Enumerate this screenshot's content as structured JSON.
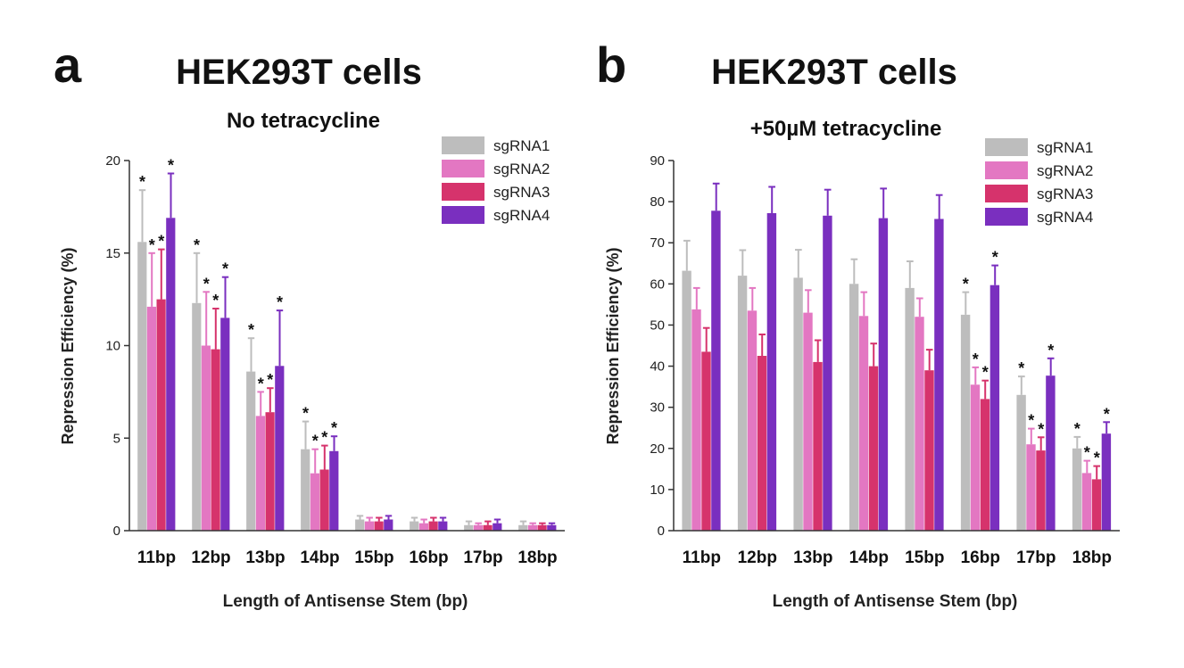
{
  "figure": {
    "panels": [
      {
        "label": "a",
        "title": "HEK293T cells",
        "subtitle": "No tetracycline"
      },
      {
        "label": "b",
        "title": "HEK293T cells",
        "subtitle": "+50µM tetracycline"
      }
    ],
    "colors": {
      "sgRNA1": "#bdbdbd",
      "sgRNA2": "#e377c2",
      "sgRNA3": "#d6336c",
      "sgRNA4": "#7a2fbf"
    }
  },
  "chart_data": [
    {
      "type": "bar",
      "title": "HEK293T cells",
      "subtitle": "No tetracycline",
      "xlabel": "Length of Antisense Stem (bp)",
      "ylabel": "Repression Efficiency (%)",
      "ylim": [
        0,
        20
      ],
      "yticks": [
        0,
        5,
        10,
        15,
        20
      ],
      "grid": false,
      "legend": "top-right",
      "categories": [
        "11bp",
        "12bp",
        "13bp",
        "14bp",
        "15bp",
        "16bp",
        "17bp",
        "18bp"
      ],
      "series": [
        {
          "name": "sgRNA1",
          "values": [
            15.6,
            12.3,
            8.6,
            4.4,
            0.6,
            0.5,
            0.3,
            0.3
          ],
          "errors": [
            2.8,
            2.7,
            1.8,
            1.5,
            0.2,
            0.2,
            0.2,
            0.2
          ],
          "significant": [
            true,
            true,
            true,
            true,
            false,
            false,
            false,
            false
          ]
        },
        {
          "name": "sgRNA2",
          "values": [
            12.1,
            10.0,
            6.2,
            3.1,
            0.5,
            0.4,
            0.3,
            0.3
          ],
          "errors": [
            2.9,
            2.9,
            1.3,
            1.3,
            0.2,
            0.2,
            0.1,
            0.1
          ],
          "significant": [
            true,
            true,
            true,
            true,
            false,
            false,
            false,
            false
          ]
        },
        {
          "name": "sgRNA3",
          "values": [
            12.5,
            9.8,
            6.4,
            3.3,
            0.5,
            0.5,
            0.3,
            0.3
          ],
          "errors": [
            2.7,
            2.2,
            1.3,
            1.3,
            0.2,
            0.2,
            0.2,
            0.1
          ],
          "significant": [
            true,
            true,
            true,
            true,
            false,
            false,
            false,
            false
          ]
        },
        {
          "name": "sgRNA4",
          "values": [
            16.9,
            11.5,
            8.9,
            4.3,
            0.6,
            0.5,
            0.4,
            0.3
          ],
          "errors": [
            2.4,
            2.2,
            3.0,
            0.8,
            0.2,
            0.2,
            0.2,
            0.1
          ],
          "significant": [
            true,
            true,
            true,
            true,
            false,
            false,
            false,
            false
          ]
        }
      ]
    },
    {
      "type": "bar",
      "title": "HEK293T cells",
      "subtitle": "+50µM tetracycline",
      "xlabel": "Length of Antisense Stem (bp)",
      "ylabel": "Repression Efficiency (%)",
      "ylim": [
        0,
        90
      ],
      "yticks": [
        0,
        10,
        20,
        30,
        40,
        50,
        60,
        70,
        80,
        90
      ],
      "grid": false,
      "legend": "top-right",
      "categories": [
        "11bp",
        "12bp",
        "13bp",
        "14bp",
        "15bp",
        "16bp",
        "17bp",
        "18bp"
      ],
      "series": [
        {
          "name": "sgRNA1",
          "values": [
            63.2,
            62.0,
            61.5,
            60.0,
            59.0,
            52.5,
            33.0,
            20.0
          ],
          "errors": [
            7.3,
            6.2,
            6.8,
            6.0,
            6.5,
            5.5,
            4.5,
            2.8
          ],
          "significant": [
            false,
            false,
            false,
            false,
            false,
            true,
            true,
            true
          ]
        },
        {
          "name": "sgRNA2",
          "values": [
            53.8,
            53.5,
            53.0,
            52.2,
            52.0,
            35.5,
            21.0,
            14.0
          ],
          "errors": [
            5.2,
            5.5,
            5.5,
            5.8,
            4.5,
            4.2,
            3.8,
            3.0
          ],
          "significant": [
            false,
            false,
            false,
            false,
            false,
            true,
            true,
            true
          ]
        },
        {
          "name": "sgRNA3",
          "values": [
            43.5,
            42.5,
            41.0,
            40.0,
            39.0,
            32.0,
            19.5,
            12.5
          ],
          "errors": [
            5.8,
            5.2,
            5.3,
            5.5,
            5.0,
            4.5,
            3.2,
            3.2
          ],
          "significant": [
            false,
            false,
            false,
            false,
            false,
            true,
            true,
            true
          ]
        },
        {
          "name": "sgRNA4",
          "values": [
            77.8,
            77.2,
            76.6,
            76.0,
            75.8,
            59.7,
            37.7,
            23.6
          ],
          "errors": [
            6.6,
            6.4,
            6.3,
            7.2,
            5.8,
            4.8,
            4.2,
            2.8
          ],
          "significant": [
            false,
            false,
            false,
            false,
            false,
            true,
            true,
            true
          ]
        }
      ]
    }
  ]
}
